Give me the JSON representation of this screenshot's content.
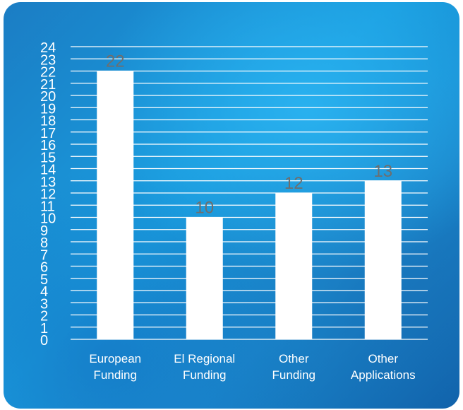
{
  "chart_data": {
    "type": "bar",
    "categories": [
      [
        "European",
        "Funding"
      ],
      [
        "El Regional",
        "Funding"
      ],
      [
        "Other",
        "Funding"
      ],
      [
        "Other",
        "Applications"
      ]
    ],
    "values": [
      22,
      10,
      12,
      13
    ],
    "ylim": [
      0,
      24
    ],
    "yticks": [
      0,
      1,
      2,
      3,
      4,
      5,
      6,
      7,
      8,
      9,
      10,
      11,
      12,
      13,
      14,
      15,
      16,
      17,
      18,
      19,
      20,
      21,
      22,
      23,
      24
    ],
    "grid": true,
    "data_labels": true,
    "colors": {
      "bar": "#ffffff",
      "gridline": "#ffffff",
      "tick_label": "#ffffff",
      "data_label": "#6e6e6e",
      "category_label": "#ffffff"
    }
  }
}
